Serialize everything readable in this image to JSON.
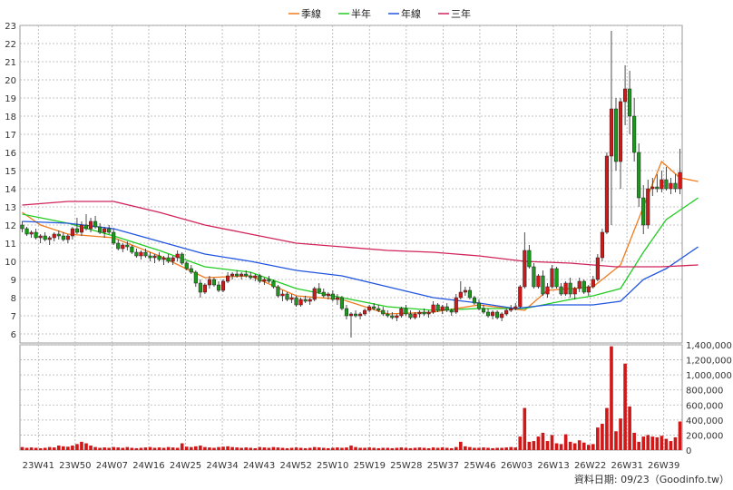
{
  "chart_data": {
    "type": "candlestick",
    "legend": [
      {
        "label": "季線",
        "color": "#f07b1e"
      },
      {
        "label": "半年",
        "color": "#22cc22"
      },
      {
        "label": "年線",
        "color": "#2256e0"
      },
      {
        "label": "三年",
        "color": "#d0245a"
      }
    ],
    "price_axis": {
      "ylim": [
        5.5,
        23
      ],
      "ticks": [
        6,
        7,
        8,
        9,
        10,
        11,
        12,
        13,
        14,
        15,
        16,
        17,
        18,
        19,
        20,
        21,
        22,
        23
      ]
    },
    "volume_axis": {
      "ylim": [
        0,
        1400000
      ],
      "ticks": [
        "0",
        "200,000",
        "400,000",
        "600,000",
        "800,000",
        "1,000,000",
        "1,200,000",
        "1,400,000"
      ]
    },
    "x_ticks": [
      "23W41",
      "23W50",
      "24W07",
      "24W16",
      "24W25",
      "24W34",
      "24W43",
      "24W52",
      "25W10",
      "25W19",
      "25W28",
      "25W37",
      "25W46",
      "26W03",
      "26W13",
      "26W22",
      "26W31",
      "26W39"
    ],
    "footer": "資料日期: 09/23（Goodinfo.tw）",
    "colors": {
      "up": "#d01818",
      "down": "#1a9a1a",
      "grid": "#b0b0b0"
    },
    "candles": [
      [
        12.0,
        12.2,
        11.6,
        11.8
      ],
      [
        11.8,
        11.9,
        11.4,
        11.5
      ],
      [
        11.5,
        11.7,
        11.3,
        11.6
      ],
      [
        11.6,
        11.8,
        11.2,
        11.3
      ],
      [
        11.3,
        11.5,
        11.0,
        11.4
      ],
      [
        11.4,
        11.6,
        11.1,
        11.2
      ],
      [
        11.2,
        11.4,
        10.9,
        11.3
      ],
      [
        11.3,
        11.6,
        11.1,
        11.5
      ],
      [
        11.5,
        11.7,
        11.2,
        11.4
      ],
      [
        11.4,
        11.6,
        11.1,
        11.2
      ],
      [
        11.2,
        11.5,
        11.0,
        11.4
      ],
      [
        11.4,
        11.9,
        11.2,
        11.8
      ],
      [
        11.8,
        12.4,
        11.5,
        11.6
      ],
      [
        11.6,
        12.2,
        11.4,
        12.0
      ],
      [
        12.0,
        12.6,
        11.7,
        11.8
      ],
      [
        11.8,
        12.4,
        11.6,
        12.2
      ],
      [
        12.2,
        12.5,
        11.8,
        11.9
      ],
      [
        11.9,
        12.1,
        11.5,
        11.6
      ],
      [
        11.6,
        11.9,
        11.3,
        11.8
      ],
      [
        11.8,
        12.0,
        11.5,
        11.6
      ],
      [
        11.6,
        11.8,
        10.9,
        11.0
      ],
      [
        11.0,
        11.2,
        10.6,
        10.7
      ],
      [
        10.7,
        11.0,
        10.5,
        10.9
      ],
      [
        10.9,
        11.1,
        10.6,
        10.8
      ],
      [
        10.8,
        10.9,
        10.4,
        10.5
      ],
      [
        10.5,
        10.7,
        10.2,
        10.3
      ],
      [
        10.3,
        10.6,
        10.1,
        10.5
      ],
      [
        10.5,
        10.7,
        10.2,
        10.3
      ],
      [
        10.3,
        10.5,
        10.0,
        10.2
      ],
      [
        10.2,
        10.4,
        9.9,
        10.3
      ],
      [
        10.3,
        10.5,
        10.0,
        10.1
      ],
      [
        10.1,
        10.3,
        9.8,
        10.2
      ],
      [
        10.2,
        10.4,
        9.9,
        10.0
      ],
      [
        10.0,
        10.3,
        9.8,
        10.2
      ],
      [
        10.2,
        10.6,
        10.0,
        10.4
      ],
      [
        10.4,
        10.5,
        9.8,
        9.9
      ],
      [
        9.9,
        10.0,
        9.5,
        9.6
      ],
      [
        9.6,
        9.8,
        9.3,
        9.4
      ],
      [
        9.4,
        9.5,
        8.6,
        8.8
      ],
      [
        8.8,
        9.0,
        8.0,
        8.3
      ],
      [
        8.3,
        8.8,
        8.2,
        8.7
      ],
      [
        8.7,
        9.2,
        8.5,
        9.0
      ],
      [
        9.0,
        9.1,
        8.6,
        8.7
      ],
      [
        8.7,
        8.9,
        8.3,
        8.4
      ],
      [
        8.4,
        9.0,
        8.3,
        8.9
      ],
      [
        8.9,
        9.4,
        8.8,
        9.2
      ],
      [
        9.2,
        9.4,
        9.0,
        9.3
      ],
      [
        9.3,
        9.5,
        9.1,
        9.2
      ],
      [
        9.2,
        9.4,
        9.0,
        9.3
      ],
      [
        9.3,
        9.5,
        9.1,
        9.2
      ],
      [
        9.2,
        9.4,
        9.0,
        9.1
      ],
      [
        9.1,
        9.3,
        8.9,
        9.2
      ],
      [
        9.2,
        9.3,
        8.8,
        8.9
      ],
      [
        8.9,
        9.1,
        8.7,
        9.0
      ],
      [
        9.0,
        9.2,
        8.8,
        8.9
      ],
      [
        8.9,
        9.0,
        8.5,
        8.6
      ],
      [
        8.6,
        8.7,
        8.0,
        8.1
      ],
      [
        8.1,
        8.4,
        7.8,
        8.2
      ],
      [
        8.2,
        8.3,
        7.8,
        7.9
      ],
      [
        7.9,
        8.2,
        7.7,
        8.0
      ],
      [
        8.0,
        8.1,
        7.5,
        7.6
      ],
      [
        7.6,
        8.0,
        7.5,
        7.9
      ],
      [
        7.9,
        8.1,
        7.7,
        7.8
      ],
      [
        7.8,
        8.0,
        7.6,
        7.9
      ],
      [
        7.9,
        8.6,
        7.8,
        8.5
      ],
      [
        8.5,
        8.8,
        8.2,
        8.3
      ],
      [
        8.3,
        8.5,
        8.0,
        8.1
      ],
      [
        8.1,
        8.3,
        7.9,
        8.2
      ],
      [
        8.2,
        8.4,
        7.8,
        7.9
      ],
      [
        7.9,
        8.2,
        7.6,
        8.0
      ],
      [
        8.0,
        8.1,
        7.3,
        7.4
      ],
      [
        7.4,
        7.6,
        6.8,
        7.0
      ],
      [
        7.0,
        7.2,
        5.8,
        7.1
      ],
      [
        7.1,
        7.3,
        6.9,
        7.0
      ],
      [
        7.0,
        7.2,
        6.8,
        7.1
      ],
      [
        7.1,
        7.4,
        7.0,
        7.3
      ],
      [
        7.3,
        7.6,
        7.2,
        7.5
      ],
      [
        7.5,
        7.7,
        7.3,
        7.4
      ],
      [
        7.4,
        7.6,
        7.2,
        7.3
      ],
      [
        7.3,
        7.5,
        7.0,
        7.1
      ],
      [
        7.1,
        7.3,
        6.9,
        7.0
      ],
      [
        7.0,
        7.2,
        6.8,
        6.9
      ],
      [
        6.9,
        7.1,
        6.7,
        7.0
      ],
      [
        7.0,
        7.5,
        6.9,
        7.4
      ],
      [
        7.4,
        7.6,
        7.0,
        7.1
      ],
      [
        7.1,
        7.3,
        6.8,
        6.9
      ],
      [
        6.9,
        7.2,
        6.8,
        7.1
      ],
      [
        7.1,
        7.3,
        6.9,
        7.2
      ],
      [
        7.2,
        7.4,
        7.0,
        7.1
      ],
      [
        7.1,
        7.3,
        6.9,
        7.2
      ],
      [
        7.2,
        7.8,
        7.1,
        7.6
      ],
      [
        7.6,
        7.7,
        7.2,
        7.3
      ],
      [
        7.3,
        7.6,
        7.1,
        7.5
      ],
      [
        7.5,
        7.7,
        7.2,
        7.3
      ],
      [
        7.3,
        7.4,
        7.0,
        7.2
      ],
      [
        7.2,
        8.2,
        7.1,
        8.0
      ],
      [
        8.0,
        8.9,
        7.9,
        8.3
      ],
      [
        8.3,
        8.6,
        8.1,
        8.4
      ],
      [
        8.4,
        8.6,
        7.9,
        8.0
      ],
      [
        8.0,
        8.1,
        7.6,
        7.7
      ],
      [
        7.7,
        7.9,
        7.3,
        7.4
      ],
      [
        7.4,
        7.6,
        7.1,
        7.2
      ],
      [
        7.2,
        7.4,
        6.9,
        7.0
      ],
      [
        7.0,
        7.3,
        6.8,
        7.2
      ],
      [
        7.2,
        7.3,
        6.8,
        6.9
      ],
      [
        6.9,
        7.2,
        6.7,
        7.1
      ],
      [
        7.1,
        7.4,
        7.0,
        7.3
      ],
      [
        7.3,
        7.6,
        7.2,
        7.4
      ],
      [
        7.4,
        7.7,
        7.3,
        7.5
      ],
      [
        7.5,
        8.7,
        7.4,
        8.6
      ],
      [
        8.6,
        11.6,
        8.5,
        10.6
      ],
      [
        10.6,
        10.9,
        9.6,
        9.7
      ],
      [
        9.7,
        9.9,
        8.5,
        8.6
      ],
      [
        8.6,
        9.3,
        8.5,
        9.2
      ],
      [
        9.2,
        9.5,
        8.1,
        8.2
      ],
      [
        8.2,
        8.8,
        8.0,
        8.6
      ],
      [
        8.6,
        9.8,
        8.5,
        9.6
      ],
      [
        9.6,
        9.7,
        8.5,
        8.6
      ],
      [
        8.6,
        8.8,
        8.1,
        8.2
      ],
      [
        8.2,
        8.9,
        8.1,
        8.8
      ],
      [
        8.8,
        9.1,
        8.0,
        8.2
      ],
      [
        8.2,
        8.6,
        7.9,
        8.5
      ],
      [
        8.5,
        9.1,
        8.3,
        8.9
      ],
      [
        8.9,
        9.0,
        8.2,
        8.3
      ],
      [
        8.3,
        8.7,
        8.1,
        8.6
      ],
      [
        8.6,
        9.2,
        8.5,
        9.0
      ],
      [
        9.0,
        10.4,
        8.9,
        10.2
      ],
      [
        10.2,
        11.8,
        10.0,
        11.6
      ],
      [
        11.6,
        16.0,
        11.5,
        15.8
      ],
      [
        15.8,
        22.7,
        12.0,
        18.4
      ],
      [
        18.4,
        19.0,
        15.0,
        15.5
      ],
      [
        15.5,
        19.0,
        14.0,
        18.8
      ],
      [
        18.8,
        20.8,
        17.5,
        19.5
      ],
      [
        19.5,
        20.5,
        17.0,
        18.0
      ],
      [
        18.0,
        19.0,
        15.5,
        16.0
      ],
      [
        16.0,
        16.5,
        13.0,
        13.5
      ],
      [
        13.5,
        14.2,
        11.5,
        12.0
      ],
      [
        12.0,
        14.5,
        11.8,
        14.0
      ],
      [
        14.0,
        14.6,
        13.6,
        14.1
      ],
      [
        14.1,
        14.8,
        13.8,
        14.0
      ],
      [
        14.0,
        15.0,
        13.8,
        14.5
      ],
      [
        14.5,
        15.2,
        13.9,
        14.0
      ],
      [
        14.0,
        14.6,
        13.7,
        14.3
      ],
      [
        14.3,
        14.8,
        13.8,
        14.0
      ],
      [
        14.0,
        16.2,
        13.7,
        14.9
      ]
    ],
    "volume": [
      40000,
      30000,
      35000,
      30000,
      25000,
      30000,
      40000,
      35000,
      60000,
      50000,
      45000,
      60000,
      80000,
      110000,
      90000,
      60000,
      40000,
      30000,
      35000,
      30000,
      40000,
      35000,
      30000,
      40000,
      30000,
      25000,
      30000,
      35000,
      40000,
      30000,
      35000,
      30000,
      40000,
      35000,
      30000,
      90000,
      45000,
      40000,
      50000,
      60000,
      40000,
      35000,
      30000,
      40000,
      45000,
      50000,
      40000,
      35000,
      30000,
      35000,
      30000,
      25000,
      40000,
      35000,
      30000,
      40000,
      35000,
      30000,
      25000,
      30000,
      35000,
      30000,
      25000,
      30000,
      40000,
      35000,
      30000,
      25000,
      30000,
      35000,
      30000,
      35000,
      60000,
      40000,
      30000,
      30000,
      35000,
      30000,
      25000,
      30000,
      30000,
      25000,
      30000,
      35000,
      30000,
      25000,
      30000,
      35000,
      30000,
      25000,
      35000,
      30000,
      35000,
      30000,
      25000,
      40000,
      110000,
      50000,
      40000,
      30000,
      30000,
      35000,
      30000,
      25000,
      30000,
      30000,
      35000,
      40000,
      35000,
      180000,
      560000,
      110000,
      120000,
      180000,
      230000,
      120000,
      200000,
      90000,
      80000,
      210000,
      110000,
      90000,
      130000,
      100000,
      70000,
      80000,
      300000,
      350000,
      560000,
      1380000,
      250000,
      420000,
      1150000,
      580000,
      230000,
      110000,
      180000,
      200000,
      180000,
      170000,
      190000,
      150000,
      120000,
      170000,
      380000
    ],
    "ma_series": {
      "季線": [
        [
          0,
          12.7
        ],
        [
          4,
          12.0
        ],
        [
          10,
          11.5
        ],
        [
          20,
          11.3
        ],
        [
          30,
          10.3
        ],
        [
          40,
          9.1
        ],
        [
          50,
          9.2
        ],
        [
          60,
          8.1
        ],
        [
          70,
          7.9
        ],
        [
          80,
          7.1
        ],
        [
          90,
          7.2
        ],
        [
          100,
          7.6
        ],
        [
          110,
          7.3
        ],
        [
          115,
          8.4
        ],
        [
          125,
          8.6
        ],
        [
          131,
          9.8
        ],
        [
          136,
          13.0
        ],
        [
          140,
          15.5
        ],
        [
          144,
          14.6
        ],
        [
          148,
          14.4
        ]
      ],
      "半年": [
        [
          0,
          12.6
        ],
        [
          10,
          12.1
        ],
        [
          20,
          11.4
        ],
        [
          30,
          10.6
        ],
        [
          40,
          9.7
        ],
        [
          50,
          9.4
        ],
        [
          60,
          8.5
        ],
        [
          70,
          8.0
        ],
        [
          80,
          7.5
        ],
        [
          90,
          7.3
        ],
        [
          100,
          7.4
        ],
        [
          110,
          7.4
        ],
        [
          120,
          7.9
        ],
        [
          125,
          8.1
        ],
        [
          131,
          8.5
        ],
        [
          136,
          10.5
        ],
        [
          141,
          12.3
        ],
        [
          148,
          13.5
        ]
      ],
      "年線": [
        [
          0,
          12.2
        ],
        [
          10,
          12.1
        ],
        [
          20,
          11.8
        ],
        [
          30,
          11.1
        ],
        [
          40,
          10.4
        ],
        [
          50,
          10.0
        ],
        [
          60,
          9.5
        ],
        [
          70,
          9.2
        ],
        [
          80,
          8.6
        ],
        [
          90,
          8.0
        ],
        [
          100,
          7.7
        ],
        [
          108,
          7.4
        ],
        [
          115,
          7.6
        ],
        [
          125,
          7.6
        ],
        [
          131,
          7.8
        ],
        [
          136,
          9.0
        ],
        [
          141,
          9.6
        ],
        [
          148,
          10.8
        ]
      ],
      "三年": [
        [
          0,
          13.1
        ],
        [
          10,
          13.3
        ],
        [
          20,
          13.3
        ],
        [
          30,
          12.7
        ],
        [
          40,
          12.0
        ],
        [
          50,
          11.5
        ],
        [
          60,
          11.0
        ],
        [
          70,
          10.8
        ],
        [
          80,
          10.6
        ],
        [
          90,
          10.5
        ],
        [
          100,
          10.3
        ],
        [
          110,
          10.0
        ],
        [
          120,
          9.9
        ],
        [
          130,
          9.7
        ],
        [
          140,
          9.7
        ],
        [
          148,
          9.8
        ]
      ]
    }
  }
}
